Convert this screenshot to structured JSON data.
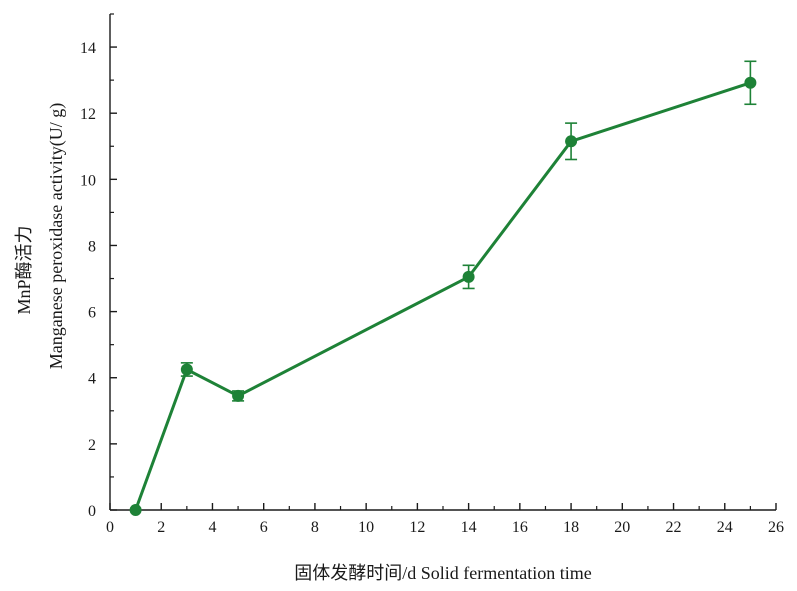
{
  "chart_data": {
    "type": "line",
    "title": "",
    "xlabel": "固体发酵时间/d Solid fermentation time",
    "ylabel_line1": "MnP酶活力",
    "ylabel_line2": "Manganese peroxidase activity(U/ g)",
    "xlim": [
      0,
      26
    ],
    "ylim": [
      0,
      15
    ],
    "xticks": [
      0,
      2,
      4,
      6,
      8,
      10,
      12,
      14,
      16,
      18,
      20,
      22,
      24,
      26
    ],
    "yticks": [
      0,
      2,
      4,
      6,
      8,
      10,
      12,
      14
    ],
    "grid": false,
    "legend": "none",
    "color": "#1e8237",
    "series": [
      {
        "x": [
          1,
          3,
          5,
          14,
          18,
          25
        ],
        "y": [
          0,
          4.25,
          3.45,
          7.05,
          11.15,
          12.92
        ],
        "err": [
          0,
          0.2,
          0.15,
          0.35,
          0.55,
          0.65
        ]
      }
    ]
  }
}
